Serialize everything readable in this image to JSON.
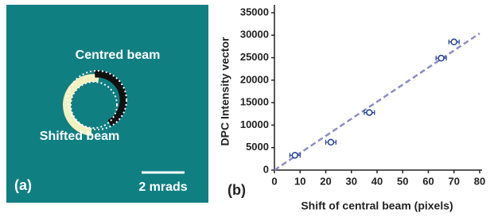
{
  "panel_a": {
    "label": "(a)",
    "centred_label": "Centred beam",
    "shifted_label": "Shifted beam",
    "scale_label": "2 mrads"
  },
  "chart_data": {
    "type": "scatter",
    "panel_label": "(b)",
    "x_label": "Shift of central beam (pixels)",
    "y_label": "DPC Intensity vector",
    "x": [
      8,
      22,
      37,
      65,
      70
    ],
    "values": [
      3300,
      6200,
      12800,
      24900,
      28500
    ],
    "x_error": [
      2,
      2,
      2,
      2,
      2
    ],
    "color": "#1f3f8f",
    "fit_line": {
      "x": [
        0,
        80
      ],
      "values": [
        0,
        30400
      ],
      "color": "#8c8cc8"
    },
    "xlim": [
      0,
      80
    ],
    "xticks": [
      0,
      10,
      20,
      30,
      40,
      50,
      60,
      70,
      80
    ],
    "ylim": [
      0,
      35000
    ],
    "yticks": [
      0,
      5000,
      10000,
      15000,
      20000,
      25000,
      30000,
      35000
    ]
  }
}
